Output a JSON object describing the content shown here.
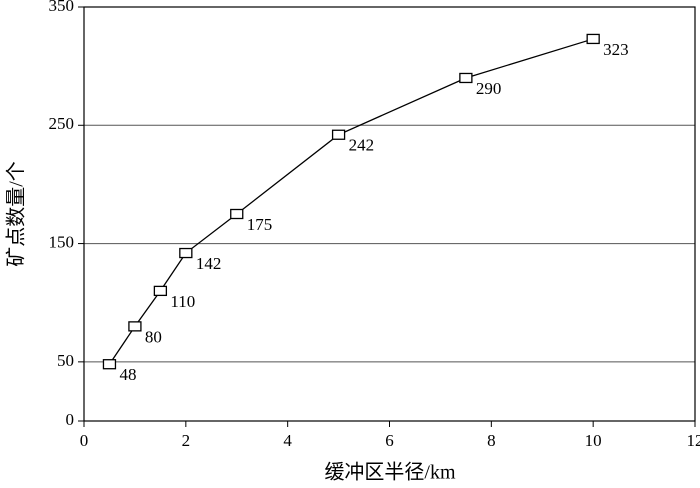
{
  "chart_data": {
    "type": "line",
    "x_label": "缓冲区半径/km",
    "y_label": "矿点数量/个",
    "x": [
      0.5,
      1,
      1.5,
      2,
      3,
      5,
      7.5,
      10
    ],
    "series": [
      {
        "color": "#000000",
        "values": [
          48,
          80,
          110,
          142,
          175,
          242,
          290,
          323
        ]
      }
    ],
    "xlim": [
      0,
      12
    ],
    "xticks": [
      0,
      2,
      4,
      6,
      8,
      10,
      12
    ],
    "ylim": [
      0,
      350
    ],
    "yticks": [
      0,
      50,
      150,
      250,
      350
    ],
    "grid": true
  }
}
